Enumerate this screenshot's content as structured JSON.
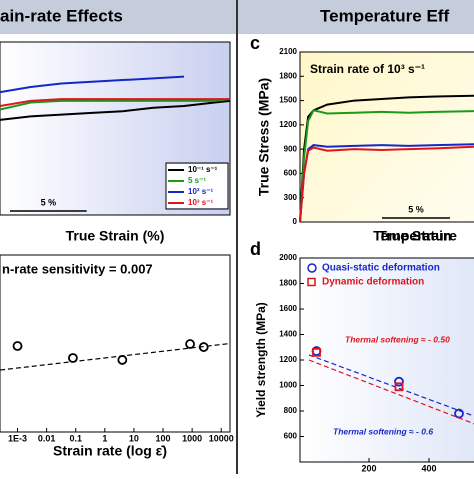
{
  "header": {
    "left": "ain-rate Effects",
    "right": "Temperature Eff"
  },
  "chart_data": [
    {
      "type": "line",
      "xlabel": "True Strain (%)",
      "scale_bar": "5 %",
      "xlim": [
        0,
        15
      ],
      "ylim": [
        0,
        100
      ],
      "series": [
        {
          "name": "10⁻¹ s⁻¹",
          "color": "#000000",
          "x": [
            0,
            2,
            4,
            6,
            8,
            10,
            12,
            14,
            15
          ],
          "values": [
            55,
            57,
            58,
            59,
            60,
            62,
            63,
            65,
            66
          ]
        },
        {
          "name": "5 s⁻¹",
          "color": "#1a9a1a",
          "x": [
            0,
            2,
            4,
            6,
            8,
            10,
            12,
            14,
            15
          ],
          "values": [
            61,
            65,
            66,
            66,
            66,
            66,
            66,
            66,
            67
          ]
        },
        {
          "name": "10² s⁻¹",
          "color": "#1428c8",
          "x": [
            0,
            2,
            4,
            6,
            8,
            10,
            12
          ],
          "values": [
            71,
            74,
            76,
            77,
            78,
            79,
            80
          ]
        },
        {
          "name": "10³ s⁻¹",
          "color": "#e0141e",
          "x": [
            0,
            2,
            4,
            6,
            8,
            10,
            12,
            14,
            15
          ],
          "values": [
            63,
            66,
            67,
            67,
            67,
            67,
            67,
            67,
            67
          ]
        }
      ]
    },
    {
      "type": "scatter",
      "annotation": "n-rate sensitivity = 0.007",
      "xlabel": "Strain rate (log ε̇)",
      "log_x": true,
      "xlim": [
        0.00025,
        20000
      ],
      "ylim": [
        0,
        100
      ],
      "xticks": [
        {
          "value": 0.001,
          "label": "1E-3"
        },
        0.01,
        0.1,
        1,
        10,
        100,
        1000,
        10000
      ],
      "x": [
        0.001,
        0.08,
        4,
        850,
        2500
      ],
      "values": [
        48.6,
        41.8,
        40.7,
        49.7,
        48
      ],
      "fit": {
        "x": [
          0.00025,
          20000
        ],
        "values": [
          35,
          50
        ]
      }
    },
    {
      "type": "line",
      "panel": "c",
      "annotation": "Strain rate of 10³ s⁻¹",
      "ylabel": "True Stress (MPa)",
      "xlabel": "True Strain",
      "scale_bar": "5 %",
      "xlim": [
        0,
        12.8
      ],
      "ylim": [
        0,
        2100
      ],
      "yticks": [
        0,
        300,
        600,
        900,
        1200,
        1500,
        1800,
        2100
      ],
      "series": [
        {
          "color": "#000000",
          "x": [
            0,
            0.3,
            0.6,
            1,
            2,
            4,
            6,
            8,
            10,
            12.8
          ],
          "values": [
            0,
            900,
            1300,
            1380,
            1450,
            1500,
            1520,
            1540,
            1550,
            1560
          ]
        },
        {
          "color": "#1a9a1a",
          "x": [
            0,
            0.3,
            0.6,
            1,
            2,
            4,
            6,
            8,
            10,
            12.8
          ],
          "values": [
            0,
            800,
            1250,
            1380,
            1340,
            1350,
            1360,
            1350,
            1360,
            1370
          ]
        },
        {
          "color": "#1428c8",
          "x": [
            0,
            0.3,
            0.6,
            1,
            2,
            4,
            6,
            8,
            10,
            12.8
          ],
          "values": [
            0,
            600,
            900,
            950,
            930,
            940,
            950,
            940,
            950,
            960
          ]
        },
        {
          "color": "#e0141e",
          "x": [
            0,
            0.3,
            0.6,
            1,
            2,
            4,
            6,
            8,
            10,
            12.8
          ],
          "values": [
            0,
            600,
            880,
            920,
            880,
            900,
            890,
            900,
            910,
            930
          ]
        }
      ]
    },
    {
      "type": "scatter",
      "panel": "d",
      "ylabel": "Yield strength (MPa)",
      "xlabel": "Temperature",
      "xlim": [
        -30,
        550
      ],
      "ylim": [
        400,
        2000
      ],
      "xticks": [
        200,
        400
      ],
      "yticks": [
        600,
        800,
        1000,
        1200,
        1400,
        1600,
        1800,
        2000
      ],
      "series": [
        {
          "name": "Quasi-static deformation",
          "color": "#1428c8",
          "marker": "circle",
          "x": [
            25,
            300,
            500
          ],
          "values": [
            1270,
            1030,
            780
          ],
          "fit": {
            "x": [
              0,
              550
            ],
            "values": [
              1240,
              760
            ]
          },
          "annotation": "Thermal softening ≈ - 0.6"
        },
        {
          "name": "Dynamic deformation",
          "color": "#e0141e",
          "marker": "square",
          "x": [
            25,
            300
          ],
          "values": [
            1260,
            990
          ],
          "fit": {
            "x": [
              0,
              550
            ],
            "values": [
              1200,
              700
            ]
          },
          "annotation": "Thermal softening ≈ - 0.50"
        }
      ]
    }
  ]
}
